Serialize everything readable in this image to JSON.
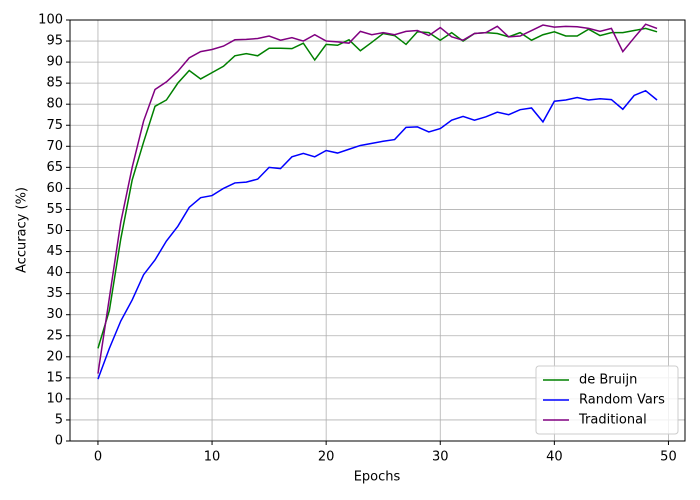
{
  "chart_data": {
    "type": "line",
    "x_label": "Epochs",
    "y_label": "Accuracy (%)",
    "x": [
      0,
      1,
      2,
      3,
      4,
      5,
      6,
      7,
      8,
      9,
      10,
      11,
      12,
      13,
      14,
      15,
      16,
      17,
      18,
      19,
      20,
      21,
      22,
      23,
      24,
      25,
      26,
      27,
      28,
      29,
      30,
      31,
      32,
      33,
      34,
      35,
      36,
      37,
      38,
      39,
      40,
      41,
      42,
      43,
      44,
      45,
      46,
      47,
      48,
      49
    ],
    "series": [
      {
        "name": "de Bruijn",
        "color": "#008000",
        "values": [
          22,
          31,
          48,
          62,
          71,
          79.5,
          81,
          85,
          88,
          86,
          87.5,
          89,
          91.5,
          92,
          91.5,
          93.3,
          93.3,
          93.2,
          94.5,
          90.5,
          94.2,
          94,
          95.3,
          92.7,
          94.7,
          96.8,
          96.3,
          94.2,
          97.2,
          97,
          95.2,
          97,
          95,
          96.8,
          97,
          96.8,
          96,
          97,
          95.2,
          96.5,
          97.2,
          96.2,
          96.2,
          97.8,
          96.3,
          97,
          97,
          97.5,
          98,
          97.2
        ]
      },
      {
        "name": "Random Vars",
        "color": "#0000ff",
        "values": [
          14.7,
          22,
          28.5,
          33.5,
          39.5,
          43,
          47.5,
          51,
          55.5,
          57.8,
          58.3,
          60,
          61.3,
          61.5,
          62.2,
          65,
          64.7,
          67.5,
          68.3,
          67.5,
          69,
          68.4,
          69.3,
          70.2,
          70.7,
          71.2,
          71.6,
          74.5,
          74.6,
          73.4,
          74.2,
          76.2,
          77.1,
          76.2,
          77,
          78.1,
          77.5,
          78.7,
          79.1,
          75.8,
          80.7,
          81,
          81.6,
          81,
          81.3,
          81.1,
          78.8,
          82.1,
          83.2,
          81
        ]
      },
      {
        "name": "Traditional",
        "color": "#800080",
        "values": [
          16,
          34,
          52,
          65,
          76,
          83.5,
          85.3,
          87.8,
          91,
          92.5,
          93,
          93.8,
          95.3,
          95.4,
          95.6,
          96.2,
          95.2,
          95.8,
          95,
          96.5,
          95,
          94.8,
          94.5,
          97.3,
          96.5,
          97,
          96.5,
          97.3,
          97.5,
          96.3,
          98.2,
          96,
          95.2,
          96.8,
          97,
          98.5,
          96,
          96.2,
          97.5,
          98.8,
          98.3,
          98.5,
          98.4,
          98,
          97.3,
          98,
          92.5,
          95.8,
          99,
          98
        ]
      }
    ],
    "xlim": [
      -2.45,
      51.45
    ],
    "xticks": [
      0,
      10,
      20,
      30,
      40,
      50
    ],
    "ylim": [
      0,
      100
    ],
    "yticks": [
      0,
      5,
      10,
      15,
      20,
      25,
      30,
      35,
      40,
      45,
      50,
      55,
      60,
      65,
      70,
      75,
      80,
      85,
      90,
      95,
      100
    ],
    "grid": true,
    "legend": "lower right"
  }
}
